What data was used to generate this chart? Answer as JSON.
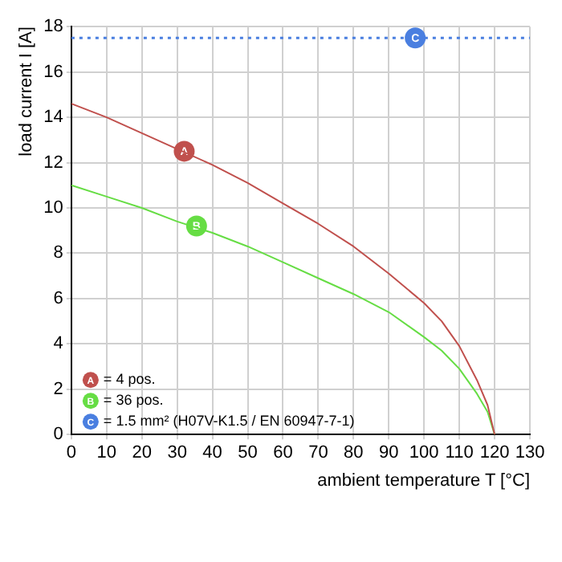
{
  "chart_data": {
    "type": "line",
    "xlabel": "ambient temperature T [°C]",
    "ylabel": "load current I [A]",
    "xlim": [
      0,
      130
    ],
    "xticks": [
      0,
      10,
      20,
      30,
      40,
      50,
      60,
      70,
      80,
      90,
      100,
      110,
      120,
      130
    ],
    "ylim": [
      0,
      18
    ],
    "yticks": [
      0,
      2,
      4,
      6,
      8,
      10,
      12,
      14,
      16,
      18
    ],
    "grid": true,
    "legend": "bottom left",
    "marker": "none",
    "series": [
      {
        "name": "= 4 pos.",
        "color": "#c0504d",
        "line_style": "solid",
        "x": [
          0,
          10,
          20,
          30,
          40,
          50,
          60,
          70,
          80,
          90,
          100,
          105,
          110,
          115,
          118,
          120
        ],
        "values": [
          14.6,
          14.0,
          13.3,
          12.6,
          11.9,
          11.1,
          10.2,
          9.3,
          8.3,
          7.1,
          5.8,
          5.0,
          3.9,
          2.4,
          1.3,
          0
        ]
      },
      {
        "name": "= 36 pos.",
        "color": "#66dd44",
        "line_style": "solid",
        "x": [
          0,
          10,
          20,
          30,
          40,
          50,
          60,
          70,
          80,
          90,
          100,
          105,
          110,
          115,
          118,
          120
        ],
        "values": [
          11.0,
          10.5,
          10.0,
          9.4,
          8.9,
          8.3,
          7.6,
          6.9,
          6.2,
          5.4,
          4.3,
          3.7,
          2.9,
          1.8,
          1.0,
          0
        ]
      },
      {
        "name": "= 1.5 mm² (H07V-K1.5 / EN 60947-7-1)",
        "color": "#4a7fe0",
        "line_style": "dotted",
        "x": [
          0,
          130
        ],
        "values": [
          17.5,
          17.5
        ]
      }
    ],
    "annotations": [
      {
        "text": "A",
        "x": 32,
        "y": 12.5
      },
      {
        "text": "B",
        "x": 35.5,
        "y": 9.2
      },
      {
        "text": "C",
        "x": 97.5,
        "y": 17.5
      }
    ]
  }
}
